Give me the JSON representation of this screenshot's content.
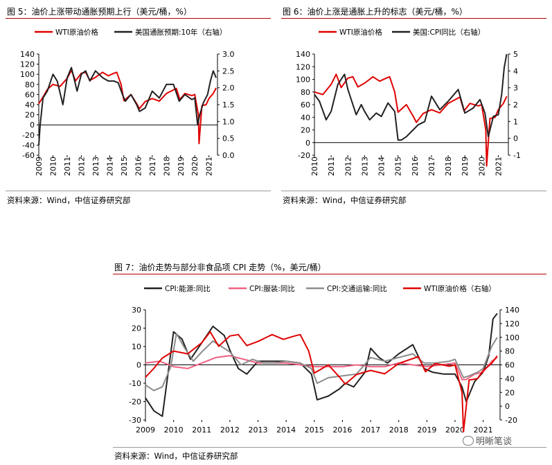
{
  "figures": {
    "f5": {
      "title": "图 5：油价上涨带动通胀预期上行（美元/桶，%）",
      "source": "资料来源：Wind，中信证券研究部"
    },
    "f6": {
      "title": "图 6：油价上涨是通胀上升的标志（美元/桶，%）",
      "source": "资料来源：Wind，中信证券研究部"
    },
    "f7": {
      "title": "图 7：油价走势与部分非食品项 CPI 走势（%，美元/桶）",
      "source": "资料来源：Wind，中信证券研究部"
    }
  },
  "watermark": "明晰笔谈",
  "colors": {
    "red": "#e00000",
    "black": "#231f20",
    "pink": "#f06080",
    "gray": "#8c8c8c",
    "rule": "#b40000"
  },
  "chart_data": [
    {
      "id": "f5",
      "type": "line",
      "title": "图 5：油价上涨带动通胀预期上行（美元/桶，%）",
      "x_ticks": [
        "2009",
        "2010",
        "2011",
        "2012",
        "2013",
        "2014",
        "2015",
        "2016",
        "2017",
        "2018",
        "2019",
        "2020",
        "2021"
      ],
      "y_left": {
        "ticks": [
          "140",
          "120",
          "100",
          "80",
          "60",
          "40",
          "20",
          "0",
          "-20",
          "-40",
          "-60"
        ],
        "range": [
          -60,
          140
        ]
      },
      "y_right": {
        "ticks": [
          "3.0",
          "2.5",
          "2.0",
          "1.5",
          "1.0",
          "0.5",
          "0.0"
        ],
        "range": [
          0.0,
          3.0
        ]
      },
      "grid": false,
      "legend_position": "top",
      "series": [
        {
          "name": "WTI原油价格",
          "axis": "left",
          "color": "#e00000",
          "x": [
            2009.0,
            2009.3,
            2009.6,
            2010.0,
            2010.5,
            2011.0,
            2011.3,
            2011.6,
            2012.0,
            2012.3,
            2012.6,
            2013.0,
            2013.5,
            2013.9,
            2014.3,
            2014.5,
            2014.8,
            2015.0,
            2015.5,
            2015.9,
            2016.1,
            2016.5,
            2017.0,
            2017.5,
            2018.0,
            2018.7,
            2018.95,
            2019.3,
            2019.8,
            2020.0,
            2020.25,
            2020.3,
            2020.5,
            2020.8,
            2021.0,
            2021.3,
            2021.5
          ],
          "values": [
            42,
            55,
            70,
            80,
            76,
            92,
            108,
            87,
            102,
            104,
            88,
            94,
            104,
            97,
            102,
            104,
            80,
            48,
            60,
            42,
            32,
            46,
            52,
            47,
            62,
            72,
            50,
            62,
            58,
            60,
            20,
            -37,
            38,
            40,
            52,
            62,
            73
          ]
        },
        {
          "name": "美国通胀预期:10年（右轴）",
          "axis": "right",
          "color": "#231f20",
          "x": [
            2009.0,
            2009.1,
            2009.3,
            2009.6,
            2010.0,
            2010.3,
            2010.7,
            2011.0,
            2011.3,
            2011.7,
            2012.0,
            2012.3,
            2012.6,
            2013.0,
            2013.5,
            2013.9,
            2014.3,
            2014.6,
            2014.9,
            2015.1,
            2015.5,
            2015.9,
            2016.1,
            2016.5,
            2017.0,
            2017.5,
            2018.0,
            2018.5,
            2018.9,
            2019.3,
            2019.8,
            2020.0,
            2020.2,
            2020.35,
            2020.6,
            2020.9,
            2021.1,
            2021.3,
            2021.5
          ],
          "values": [
            0.3,
            0.9,
            1.7,
            1.9,
            2.4,
            2.2,
            1.5,
            2.3,
            2.6,
            1.9,
            2.4,
            2.5,
            2.2,
            2.5,
            2.3,
            2.2,
            2.2,
            2.15,
            1.8,
            1.6,
            1.8,
            1.5,
            1.3,
            1.4,
            1.9,
            1.7,
            2.1,
            2.1,
            1.6,
            1.8,
            1.65,
            1.7,
            0.9,
            1.2,
            1.55,
            1.8,
            2.2,
            2.5,
            2.3
          ]
        }
      ]
    },
    {
      "id": "f6",
      "type": "line",
      "title": "图 6：油价上涨是通胀上升的标志（美元/桶，%）",
      "x_ticks": [
        "2010",
        "2011",
        "2012",
        "2013",
        "2014",
        "2015",
        "2016",
        "2017",
        "2018",
        "2019",
        "2020",
        "2021"
      ],
      "y_left": {
        "ticks": [
          "140",
          "120",
          "100",
          "80",
          "60",
          "40",
          "20",
          "0",
          "-20"
        ],
        "range": [
          -20,
          140
        ]
      },
      "y_right": {
        "ticks": [
          "5",
          "4",
          "3",
          "2",
          "1",
          "0",
          "-1"
        ],
        "range": [
          -1,
          5
        ]
      },
      "grid": false,
      "legend_position": "top",
      "series": [
        {
          "name": "WTI原油价格",
          "axis": "left",
          "color": "#e00000",
          "x": [
            2010.0,
            2010.5,
            2011.0,
            2011.3,
            2011.6,
            2012.0,
            2012.3,
            2012.6,
            2013.0,
            2013.5,
            2013.9,
            2014.3,
            2014.5,
            2014.8,
            2015.0,
            2015.5,
            2015.9,
            2016.1,
            2016.5,
            2017.0,
            2017.5,
            2018.0,
            2018.7,
            2018.95,
            2019.3,
            2019.8,
            2020.0,
            2020.25,
            2020.3,
            2020.5,
            2020.8,
            2021.0,
            2021.3,
            2021.5
          ],
          "values": [
            80,
            76,
            92,
            108,
            87,
            102,
            104,
            88,
            94,
            104,
            97,
            102,
            104,
            80,
            48,
            60,
            42,
            32,
            46,
            52,
            47,
            62,
            72,
            50,
            62,
            58,
            60,
            20,
            -37,
            38,
            40,
            52,
            62,
            73
          ]
        },
        {
          "name": "美国:CPI同比（右轴）",
          "axis": "right",
          "color": "#231f20",
          "x": [
            2010.0,
            2010.3,
            2010.7,
            2011.0,
            2011.4,
            2011.8,
            2012.0,
            2012.5,
            2012.8,
            2013.0,
            2013.3,
            2013.7,
            2014.0,
            2014.4,
            2014.8,
            2015.0,
            2015.2,
            2015.5,
            2015.9,
            2016.2,
            2016.6,
            2017.0,
            2017.5,
            2018.0,
            2018.6,
            2019.0,
            2019.5,
            2019.9,
            2020.2,
            2020.4,
            2020.7,
            2021.0,
            2021.2,
            2021.35,
            2021.5
          ],
          "values": [
            2.6,
            2.2,
            1.1,
            1.6,
            3.2,
            3.8,
            2.9,
            1.4,
            2.0,
            1.6,
            1.1,
            1.5,
            1.3,
            2.1,
            1.6,
            -0.1,
            -0.1,
            0.1,
            0.5,
            0.8,
            1.0,
            2.5,
            1.7,
            2.2,
            2.9,
            1.5,
            1.8,
            2.3,
            1.5,
            0.1,
            1.3,
            1.4,
            2.6,
            4.2,
            5.0
          ]
        }
      ]
    },
    {
      "id": "f7",
      "type": "line",
      "title": "图 7：油价走势与部分非食品项 CPI 走势（%，美元/桶）",
      "x_ticks": [
        "2009",
        "2010",
        "2011",
        "2012",
        "2013",
        "2014",
        "2015",
        "2016",
        "2017",
        "2018",
        "2019",
        "2020",
        "2021"
      ],
      "y_left": {
        "ticks": [
          "30",
          "20",
          "10",
          "0",
          "-10",
          "-20",
          "-30"
        ],
        "range": [
          -30,
          30
        ]
      },
      "y_right": {
        "ticks": [
          "140",
          "120",
          "100",
          "80",
          "60",
          "40",
          "20",
          "0",
          "-20"
        ],
        "range": [
          -20,
          140
        ]
      },
      "grid": false,
      "legend_position": "top",
      "series": [
        {
          "name": "CPI:能源:同比",
          "axis": "left",
          "color": "#231f20",
          "x": [
            2009.0,
            2009.3,
            2009.6,
            2009.8,
            2010.0,
            2010.3,
            2010.6,
            2011.0,
            2011.4,
            2011.8,
            2012.0,
            2012.3,
            2012.6,
            2013.0,
            2013.5,
            2014.0,
            2014.5,
            2014.9,
            2015.1,
            2015.5,
            2015.9,
            2016.1,
            2016.4,
            2016.8,
            2017.0,
            2017.3,
            2017.6,
            2018.0,
            2018.5,
            2018.9,
            2019.2,
            2019.6,
            2020.0,
            2020.25,
            2020.4,
            2020.7,
            2021.0,
            2021.2,
            2021.35,
            2021.5
          ],
          "values": [
            -18,
            -25,
            -28,
            -5,
            18,
            14,
            3,
            12,
            21,
            16,
            8,
            -2,
            -5,
            2,
            2,
            2,
            1,
            -5,
            -19,
            -17,
            -13,
            -10,
            -12,
            -4,
            9,
            4,
            1,
            6,
            11,
            -2,
            -4,
            -5,
            -5,
            -12,
            -20,
            -9,
            -4,
            5,
            25,
            28
          ]
        },
        {
          "name": "CPI:服装:同比",
          "axis": "left",
          "color": "#f06080",
          "x": [
            2009.0,
            2009.5,
            2010.0,
            2010.5,
            2011.0,
            2011.5,
            2012.0,
            2012.5,
            2013.0,
            2013.5,
            2014.0,
            2014.5,
            2015.0,
            2015.5,
            2016.0,
            2016.5,
            2017.0,
            2017.5,
            2018.0,
            2018.5,
            2019.0,
            2019.5,
            2020.0,
            2020.25,
            2020.4,
            2020.7,
            2021.0,
            2021.3,
            2021.5
          ],
          "values": [
            1,
            2,
            -1,
            -2,
            1,
            4,
            5,
            3,
            1,
            1,
            1,
            0,
            -1,
            -1,
            -1,
            0,
            -1,
            -1,
            1,
            0,
            -1,
            0,
            1,
            -8,
            -8,
            -5,
            -4,
            2,
            4
          ]
        },
        {
          "name": "CPI:交通运输:同比",
          "axis": "left",
          "color": "#8c8c8c",
          "x": [
            2009.0,
            2009.3,
            2009.6,
            2009.9,
            2010.1,
            2010.4,
            2010.7,
            2011.0,
            2011.4,
            2011.8,
            2012.0,
            2012.4,
            2012.8,
            2013.2,
            2013.6,
            2014.0,
            2014.5,
            2014.9,
            2015.1,
            2015.5,
            2016.0,
            2016.5,
            2017.0,
            2017.5,
            2018.0,
            2018.5,
            2018.9,
            2019.3,
            2019.8,
            2020.0,
            2020.3,
            2020.5,
            2020.8,
            2021.0,
            2021.3,
            2021.5
          ],
          "values": [
            -11,
            -14,
            -12,
            -1,
            17,
            9,
            2,
            7,
            13,
            9,
            7,
            0,
            3,
            1,
            1,
            2,
            1,
            -2,
            -10,
            -7,
            -6,
            -5,
            4,
            2,
            4,
            6,
            1,
            1,
            2,
            3,
            -7,
            -6,
            -4,
            -2,
            10,
            15
          ]
        },
        {
          "name": "WTI原油价格（右轴）",
          "axis": "right",
          "color": "#e00000",
          "x": [
            2009.0,
            2009.3,
            2009.6,
            2010.0,
            2010.5,
            2011.0,
            2011.3,
            2011.6,
            2012.0,
            2012.3,
            2012.6,
            2013.0,
            2013.5,
            2013.9,
            2014.3,
            2014.5,
            2014.8,
            2015.0,
            2015.5,
            2015.9,
            2016.1,
            2016.5,
            2017.0,
            2017.5,
            2018.0,
            2018.7,
            2018.95,
            2019.3,
            2019.8,
            2020.0,
            2020.25,
            2020.3,
            2020.5,
            2020.8,
            2021.0,
            2021.3,
            2021.5
          ],
          "values": [
            42,
            55,
            70,
            80,
            76,
            92,
            108,
            87,
            102,
            104,
            88,
            94,
            104,
            97,
            102,
            104,
            80,
            48,
            60,
            42,
            32,
            46,
            52,
            47,
            62,
            72,
            50,
            62,
            58,
            60,
            20,
            -37,
            38,
            40,
            52,
            62,
            73
          ]
        }
      ]
    }
  ]
}
